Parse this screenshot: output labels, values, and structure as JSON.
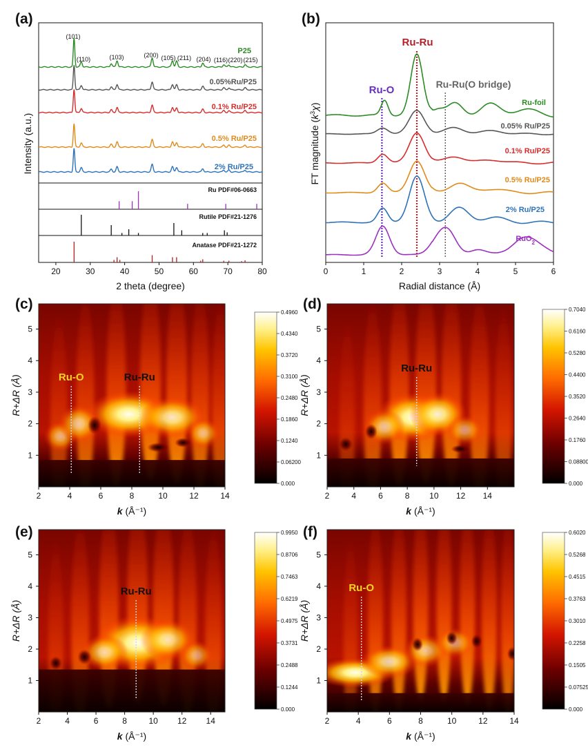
{
  "chart_data": [
    {
      "id": "a",
      "panel_label": "(a)",
      "type": "line",
      "xlabel": "2 theta (degree)",
      "ylabel": "Intensity (a.u.)",
      "xlim": [
        15,
        80
      ],
      "xticks": [
        "20",
        "30",
        "40",
        "50",
        "60",
        "70",
        "80"
      ],
      "peak_labels": [
        {
          "text": "(101)",
          "x": 25.3
        },
        {
          "text": "(110)",
          "x": 27.9
        },
        {
          "text": "(103)",
          "x": 37.6
        },
        {
          "text": "(200)",
          "x": 48.0
        },
        {
          "text": "(105)",
          "x": 53.9
        },
        {
          "text": "(211)",
          "x": 56.5
        },
        {
          "text": "(204)",
          "x": 62.7
        },
        {
          "text": "(116)",
          "x": 68.5
        },
        {
          "text": "(220)",
          "x": 71.3
        },
        {
          "text": "(215)",
          "x": 75.0
        }
      ],
      "series": [
        {
          "name": "P25",
          "color": "#2a8a24"
        },
        {
          "name": "0.05%Ru/P25",
          "color": "#555555"
        },
        {
          "name": "0.1% Ru/P25",
          "color": "#d62c2c"
        },
        {
          "name": "0.5% Ru/P25",
          "color": "#e08a1a"
        },
        {
          "name": "2% Ru/P25",
          "color": "#2d72b8"
        }
      ],
      "peaks": [
        {
          "x": 25.3,
          "h": 1.0
        },
        {
          "x": 27.4,
          "h": 0.18
        },
        {
          "x": 36.1,
          "h": 0.12
        },
        {
          "x": 37.8,
          "h": 0.22
        },
        {
          "x": 48.0,
          "h": 0.32
        },
        {
          "x": 53.9,
          "h": 0.22
        },
        {
          "x": 55.1,
          "h": 0.2
        },
        {
          "x": 62.7,
          "h": 0.14
        },
        {
          "x": 68.8,
          "h": 0.08
        },
        {
          "x": 70.3,
          "h": 0.08
        },
        {
          "x": 75.0,
          "h": 0.08
        }
      ],
      "references": [
        {
          "name": "Ru PDF#06-0663",
          "color": "#9b2fc0",
          "lines": [
            {
              "x": 38.4,
              "h": 0.45
            },
            {
              "x": 42.2,
              "h": 0.45
            },
            {
              "x": 44.0,
              "h": 1.0
            },
            {
              "x": 58.3,
              "h": 0.3
            },
            {
              "x": 69.4,
              "h": 0.3
            },
            {
              "x": 78.4,
              "h": 0.3
            }
          ]
        },
        {
          "name": "Rutile PDF#21-1276",
          "color": "#111111",
          "lines": [
            {
              "x": 27.4,
              "h": 1.0
            },
            {
              "x": 36.1,
              "h": 0.5
            },
            {
              "x": 39.2,
              "h": 0.12
            },
            {
              "x": 41.2,
              "h": 0.3
            },
            {
              "x": 44.0,
              "h": 0.12
            },
            {
              "x": 54.3,
              "h": 0.6
            },
            {
              "x": 56.6,
              "h": 0.25
            },
            {
              "x": 62.7,
              "h": 0.12
            },
            {
              "x": 64.0,
              "h": 0.12
            },
            {
              "x": 69.0,
              "h": 0.25
            },
            {
              "x": 69.8,
              "h": 0.15
            }
          ]
        },
        {
          "name": "Anatase PDF#21-1272",
          "color": "#b22020",
          "lines": [
            {
              "x": 25.3,
              "h": 1.0
            },
            {
              "x": 36.9,
              "h": 0.12
            },
            {
              "x": 37.8,
              "h": 0.25
            },
            {
              "x": 38.6,
              "h": 0.12
            },
            {
              "x": 48.0,
              "h": 0.35
            },
            {
              "x": 53.9,
              "h": 0.25
            },
            {
              "x": 55.1,
              "h": 0.25
            },
            {
              "x": 62.1,
              "h": 0.08
            },
            {
              "x": 62.7,
              "h": 0.15
            },
            {
              "x": 68.8,
              "h": 0.08
            },
            {
              "x": 70.3,
              "h": 0.08
            },
            {
              "x": 74.0,
              "h": 0.06
            },
            {
              "x": 75.0,
              "h": 0.1
            }
          ]
        }
      ]
    },
    {
      "id": "b",
      "panel_label": "(b)",
      "type": "line",
      "xlabel": "Radial distance (Å)",
      "ylabel_prefix": "FT magnitude (",
      "ylabel_k": "k",
      "ylabel_sup": "3",
      "ylabel_chi": "χ",
      "ylabel_suffix": ")",
      "xlim": [
        0,
        6
      ],
      "xticks": [
        "0",
        "1",
        "2",
        "3",
        "4",
        "5",
        "6"
      ],
      "markers": [
        {
          "label": "Ru-O",
          "x": 1.48,
          "color": "#6a2fc0"
        },
        {
          "label": "Ru-Ru",
          "x": 2.4,
          "color": "#b3202a"
        },
        {
          "label": "Ru-Ru(O bridge)",
          "x": 3.15,
          "color": "#666666"
        }
      ],
      "series": [
        {
          "name": "Ru-foil",
          "color": "#2a8a24"
        },
        {
          "name": "0.05% Ru/P25",
          "color": "#555555"
        },
        {
          "name": "0.1% Ru/P25",
          "color": "#d62c2c"
        },
        {
          "name": "0.5% Ru/P25",
          "color": "#e08a1a"
        },
        {
          "name": "2% Ru/P25",
          "color": "#2d72b8"
        },
        {
          "name": "RuO",
          "name_sub": "2",
          "color": "#9b2fc0"
        }
      ]
    },
    {
      "id": "c",
      "panel_label": "(c)",
      "type": "heatmap",
      "xlabel_k": "k",
      "xlabel_rest": " (Å⁻¹)",
      "ylabel": "R+ΔR (Å)",
      "xlim": [
        2,
        14
      ],
      "ylim": [
        0,
        5.8
      ],
      "xticks": [
        "2",
        "4",
        "6",
        "8",
        "10",
        "12",
        "14"
      ],
      "yticks": [
        "1",
        "2",
        "3",
        "4",
        "5"
      ],
      "colorbar": [
        "0.4960",
        "0.4340",
        "0.3720",
        "0.3100",
        "0.2480",
        "0.1860",
        "0.1240",
        "0.06200",
        "0.000"
      ],
      "markers": [
        {
          "label": "Ru-O",
          "k": 4.1,
          "label_color": "#f7d520"
        },
        {
          "label": "Ru-Ru",
          "k": 8.5,
          "label_color": "#111111"
        }
      ]
    },
    {
      "id": "d",
      "panel_label": "(d)",
      "type": "heatmap",
      "xlabel_k": "k",
      "xlabel_rest": " (Å⁻¹)",
      "ylabel": "R+ΔR (Å)",
      "xlim": [
        2,
        16
      ],
      "ylim": [
        0,
        5.8
      ],
      "xticks": [
        "2",
        "4",
        "6",
        "8",
        "10",
        "12",
        "14"
      ],
      "yticks": [
        "1",
        "2",
        "3",
        "4",
        "5"
      ],
      "colorbar": [
        "0.7040",
        "0.6160",
        "0.5280",
        "0.4400",
        "0.3520",
        "0.2640",
        "0.1760",
        "0.08800",
        "0.000"
      ],
      "markers": [
        {
          "label": "Ru-Ru",
          "k": 8.7,
          "label_color": "#111111"
        }
      ]
    },
    {
      "id": "e",
      "panel_label": "(e)",
      "type": "heatmap",
      "xlabel_k": "k",
      "xlabel_rest": " (Å⁻¹)",
      "ylabel": "R+ΔR (Å)",
      "xlim": [
        2,
        15
      ],
      "ylim": [
        0,
        5.8
      ],
      "xticks": [
        "2",
        "4",
        "6",
        "8",
        "10",
        "12",
        "14"
      ],
      "yticks": [
        "1",
        "2",
        "3",
        "4",
        "5"
      ],
      "colorbar": [
        "0.9950",
        "0.8706",
        "0.7463",
        "0.6219",
        "0.4975",
        "0.3731",
        "0.2488",
        "0.1244",
        "0.000"
      ],
      "markers": [
        {
          "label": "Ru-Ru",
          "k": 8.8,
          "label_color": "#111111"
        }
      ]
    },
    {
      "id": "f",
      "panel_label": "(f)",
      "type": "heatmap",
      "xlabel_k": "k",
      "xlabel_rest": " (Å⁻¹)",
      "ylabel": "R+ΔR (Å)",
      "xlim": [
        2,
        14
      ],
      "ylim": [
        0,
        5.8
      ],
      "xticks": [
        "2",
        "4",
        "6",
        "8",
        "10",
        "12",
        "14"
      ],
      "yticks": [
        "1",
        "2",
        "3",
        "4",
        "5"
      ],
      "colorbar": [
        "0.6020",
        "0.5268",
        "0.4515",
        "0.3763",
        "0.3010",
        "0.2258",
        "0.1505",
        "0.07525",
        "0.000"
      ],
      "markers": [
        {
          "label": "Ru-O",
          "k": 4.2,
          "label_color": "#f7d520"
        }
      ]
    }
  ]
}
